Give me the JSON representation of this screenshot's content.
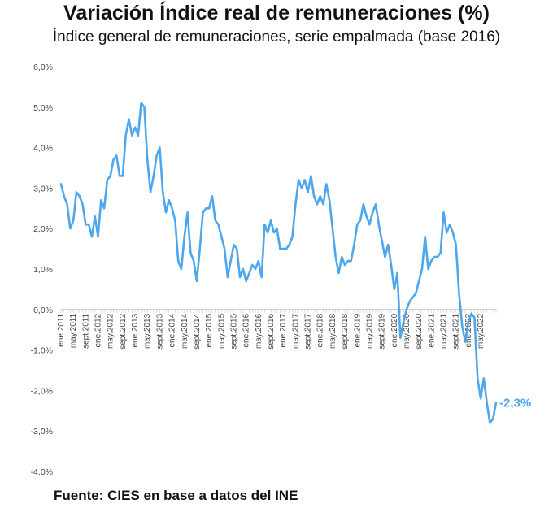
{
  "chart_data": {
    "type": "line",
    "title": "Variación Índice real de remuneraciones (%)",
    "subtitle": "Índice general de remuneraciones, serie empalmada (base 2016)",
    "source": "Fuente: CIES en base a datos del INE",
    "ylim": [
      -4,
      6
    ],
    "yticks": [
      "6,0%",
      "5,0%",
      "4,0%",
      "3,0%",
      "2,0%",
      "1,0%",
      "0,0%",
      "-1,0%",
      "-2,0%",
      "-3,0%",
      "-4,0%"
    ],
    "ytick_values": [
      6,
      5,
      4,
      3,
      2,
      1,
      0,
      -1,
      -2,
      -3,
      -4
    ],
    "grid": false,
    "line_color": "#4ea6ec",
    "end_label": "-2,3%",
    "xtick_labels": [
      {
        "i": 0,
        "label": "ene.2011"
      },
      {
        "i": 4,
        "label": "may.2011"
      },
      {
        "i": 8,
        "label": "sept.2011"
      },
      {
        "i": 12,
        "label": "ene.2012"
      },
      {
        "i": 16,
        "label": "may.2012"
      },
      {
        "i": 20,
        "label": "sept.2012"
      },
      {
        "i": 24,
        "label": "ene.2013"
      },
      {
        "i": 28,
        "label": "may.2013"
      },
      {
        "i": 32,
        "label": "sept.2013"
      },
      {
        "i": 36,
        "label": "ene.2014"
      },
      {
        "i": 40,
        "label": "may.2014"
      },
      {
        "i": 44,
        "label": "sept.2014"
      },
      {
        "i": 48,
        "label": "ene.2015"
      },
      {
        "i": 52,
        "label": "may.2015"
      },
      {
        "i": 56,
        "label": "sept.2015"
      },
      {
        "i": 60,
        "label": "ene.2016"
      },
      {
        "i": 64,
        "label": "may.2016"
      },
      {
        "i": 68,
        "label": "sept.2016"
      },
      {
        "i": 72,
        "label": "ene.2017"
      },
      {
        "i": 76,
        "label": "may.2017"
      },
      {
        "i": 80,
        "label": "sept.2017"
      },
      {
        "i": 84,
        "label": "ene.2018"
      },
      {
        "i": 88,
        "label": "may.2018"
      },
      {
        "i": 92,
        "label": "sept.2018"
      },
      {
        "i": 96,
        "label": "ene.2019"
      },
      {
        "i": 100,
        "label": "may.2019"
      },
      {
        "i": 104,
        "label": "sept.2019"
      },
      {
        "i": 108,
        "label": "ene.2020"
      },
      {
        "i": 112,
        "label": "may.2020"
      },
      {
        "i": 116,
        "label": "sept.2020"
      },
      {
        "i": 120,
        "label": "ene.2021"
      },
      {
        "i": 124,
        "label": "may.2021"
      },
      {
        "i": 128,
        "label": "sept.2021"
      },
      {
        "i": 132,
        "label": "ene.2022"
      },
      {
        "i": 136,
        "label": "may.2022"
      }
    ],
    "values": [
      3.1,
      2.8,
      2.6,
      2.0,
      2.2,
      2.9,
      2.8,
      2.6,
      2.1,
      2.1,
      1.8,
      2.3,
      1.8,
      2.7,
      2.5,
      3.2,
      3.3,
      3.7,
      3.8,
      3.3,
      3.3,
      4.3,
      4.7,
      4.3,
      4.5,
      4.3,
      5.1,
      5.0,
      3.7,
      2.9,
      3.3,
      3.8,
      4.0,
      2.9,
      2.4,
      2.7,
      2.5,
      2.2,
      1.2,
      1.0,
      1.8,
      2.4,
      1.4,
      1.2,
      0.7,
      1.5,
      2.4,
      2.5,
      2.5,
      2.8,
      2.2,
      2.1,
      1.8,
      1.5,
      0.8,
      1.2,
      1.6,
      1.5,
      0.8,
      1.0,
      0.7,
      0.9,
      1.1,
      1.0,
      1.2,
      0.8,
      2.1,
      1.9,
      2.2,
      1.9,
      2.0,
      1.5,
      1.5,
      1.5,
      1.6,
      1.8,
      2.6,
      3.2,
      3.0,
      3.2,
      2.9,
      3.3,
      2.8,
      2.6,
      2.8,
      2.6,
      3.1,
      2.7,
      2.0,
      1.3,
      0.9,
      1.3,
      1.1,
      1.2,
      1.2,
      1.6,
      2.1,
      2.2,
      2.6,
      2.3,
      2.1,
      2.4,
      2.6,
      2.1,
      1.7,
      1.3,
      1.6,
      1.1,
      0.5,
      0.9,
      -0.7,
      -0.3,
      0.0,
      0.2,
      0.3,
      0.4,
      0.7,
      1.0,
      1.8,
      1.0,
      1.2,
      1.3,
      1.3,
      1.4,
      2.4,
      1.9,
      2.1,
      1.9,
      1.6,
      0.4,
      -0.4,
      -0.8,
      -0.3,
      -0.1,
      -0.2,
      -1.7,
      -2.2,
      -1.7,
      -2.3,
      -2.8,
      -2.7,
      -2.3
    ]
  }
}
